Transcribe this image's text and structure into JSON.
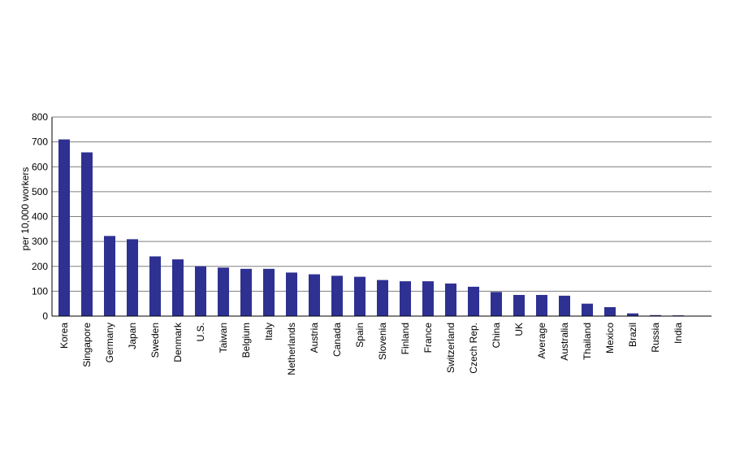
{
  "colors": {
    "bar": "#2e3192",
    "grid": "#7f7f7f",
    "axis": "#000000",
    "text": "#000000"
  },
  "chart_data": {
    "type": "bar",
    "title": "",
    "xlabel": "",
    "ylabel": "per 10,000 workers",
    "ylim": [
      0,
      800
    ],
    "yticks": [
      0,
      100,
      200,
      300,
      400,
      500,
      600,
      700,
      800
    ],
    "grid": true,
    "legend": "none",
    "categories": [
      "Korea",
      "Singapore",
      "Germany",
      "Japan",
      "Sweden",
      "Denmark",
      "U.S.",
      "Taiwan",
      "Belgium",
      "Italy",
      "Netherlands",
      "Austria",
      "Canada",
      "Spain",
      "Slovenia",
      "Finland",
      "France",
      "Switzerland",
      "Czech Rep.",
      "China",
      "UK",
      "Average",
      "Australia",
      "Thailand",
      "Mexico",
      "Brazil",
      "Russia",
      "India"
    ],
    "values": [
      710,
      658,
      322,
      309,
      240,
      228,
      200,
      195,
      190,
      190,
      175,
      168,
      162,
      158,
      145,
      140,
      140,
      131,
      118,
      97,
      85,
      85,
      82,
      50,
      36,
      11,
      4,
      3
    ]
  }
}
